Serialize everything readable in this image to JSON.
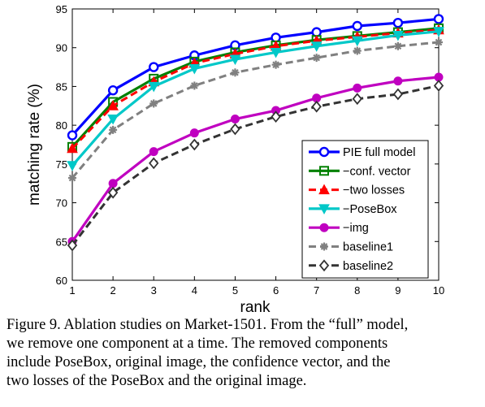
{
  "chart_data": {
    "type": "line",
    "xlabel": "rank",
    "ylabel": "matching rate (%)",
    "x": [
      1,
      2,
      3,
      4,
      5,
      6,
      7,
      8,
      9,
      10
    ],
    "xlim": [
      1,
      10
    ],
    "ylim": [
      60,
      95
    ],
    "xticks": [
      "1",
      "2",
      "3",
      "4",
      "5",
      "6",
      "7",
      "8",
      "9",
      "10"
    ],
    "yticks": [
      "60",
      "65",
      "70",
      "75",
      "80",
      "85",
      "90",
      "95"
    ],
    "grid": false,
    "legend_position": "bottom-right",
    "series": [
      {
        "name": "PIE full model",
        "color": "#0000ff",
        "marker": "circle-open",
        "dash": "solid",
        "values": [
          78.7,
          84.5,
          87.5,
          89.0,
          90.3,
          91.3,
          92.0,
          92.8,
          93.2,
          93.7
        ]
      },
      {
        "name": "−conf. vector",
        "color": "#008000",
        "marker": "square-open",
        "dash": "solid",
        "values": [
          77.2,
          83.0,
          86.0,
          88.2,
          89.4,
          90.3,
          91.0,
          91.5,
          92.0,
          92.5
        ]
      },
      {
        "name": "−two losses",
        "color": "#ff0000",
        "marker": "triangle-up",
        "dash": "dashed",
        "values": [
          77.0,
          82.5,
          85.6,
          88.0,
          89.2,
          90.2,
          90.9,
          91.4,
          91.9,
          92.3
        ]
      },
      {
        "name": "−PoseBox",
        "color": "#00c8c8",
        "marker": "triangle-down",
        "dash": "solid",
        "values": [
          74.8,
          80.8,
          85.0,
          87.3,
          88.5,
          89.4,
          90.2,
          90.9,
          91.6,
          92.1
        ]
      },
      {
        "name": "−img",
        "color": "#c000c0",
        "marker": "circle-filled",
        "dash": "solid",
        "values": [
          65.0,
          72.5,
          76.6,
          79.0,
          80.8,
          81.9,
          83.5,
          84.8,
          85.7,
          86.2
        ]
      },
      {
        "name": "baseline1",
        "color": "#808080",
        "marker": "star",
        "dash": "dashed",
        "values": [
          73.2,
          79.4,
          82.8,
          85.1,
          86.8,
          87.8,
          88.7,
          89.6,
          90.2,
          90.7
        ]
      },
      {
        "name": "baseline2",
        "color": "#333333",
        "marker": "diamond-open",
        "dash": "dashed",
        "values": [
          64.5,
          71.3,
          75.1,
          77.5,
          79.5,
          81.1,
          82.4,
          83.4,
          84.0,
          85.1
        ]
      }
    ]
  },
  "caption": {
    "lines": [
      "Figure 9. Ablation studies on Market-1501. From the “full” model,",
      "we remove one component at a time.  The removed components",
      "include PoseBox, original image, the confidence vector, and the",
      "two losses of the PoseBox and the original image."
    ]
  }
}
